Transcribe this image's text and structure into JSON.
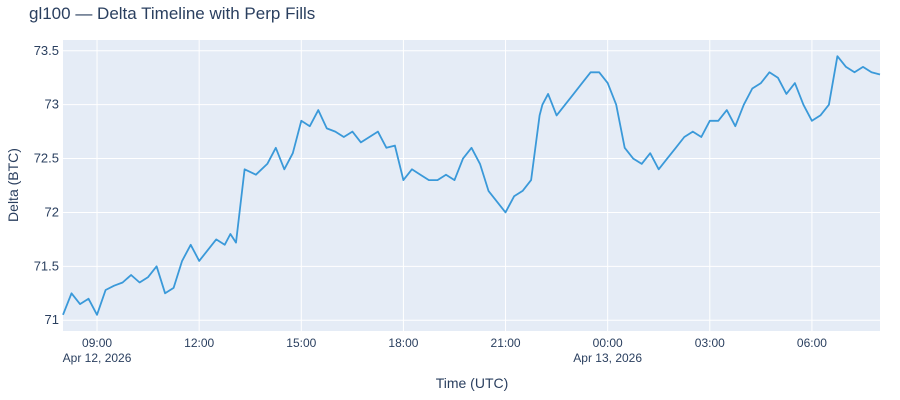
{
  "chart_data": {
    "type": "line",
    "title": "gl100 — Delta Timeline with Perp Fills",
    "xlabel": "Time (UTC)",
    "ylabel": "Delta (BTC)",
    "colors": {
      "line": "#3a99d9",
      "plot_bg": "#e5ecf6",
      "grid": "#ffffff",
      "text": "#2a3f5f"
    },
    "grid": true,
    "legend": "none",
    "xlim": [
      "2026-04-12 08:00",
      "2026-04-13 08:00"
    ],
    "ylim": [
      70.9,
      73.6
    ],
    "x_ticks": [
      {
        "t": "2026-04-12 09:00",
        "label": "09:00",
        "sub": "Apr 12, 2026"
      },
      {
        "t": "2026-04-12 12:00",
        "label": "12:00",
        "sub": ""
      },
      {
        "t": "2026-04-12 15:00",
        "label": "15:00",
        "sub": ""
      },
      {
        "t": "2026-04-12 18:00",
        "label": "18:00",
        "sub": ""
      },
      {
        "t": "2026-04-12 21:00",
        "label": "21:00",
        "sub": ""
      },
      {
        "t": "2026-04-13 00:00",
        "label": "00:00",
        "sub": "Apr 13, 2026"
      },
      {
        "t": "2026-04-13 03:00",
        "label": "03:00",
        "sub": ""
      },
      {
        "t": "2026-04-13 06:00",
        "label": "06:00",
        "sub": ""
      }
    ],
    "y_ticks": [
      {
        "v": 71,
        "label": "71"
      },
      {
        "v": 71.5,
        "label": "71.5"
      },
      {
        "v": 72,
        "label": "72"
      },
      {
        "v": 72.5,
        "label": "72.5"
      },
      {
        "v": 73,
        "label": "73"
      },
      {
        "v": 73.5,
        "label": "73.5"
      }
    ],
    "series": [
      {
        "x": [
          "2026-04-12 08:00",
          "2026-04-12 08:15",
          "2026-04-12 08:30",
          "2026-04-12 08:45",
          "2026-04-12 09:00",
          "2026-04-12 09:15",
          "2026-04-12 09:30",
          "2026-04-12 09:45",
          "2026-04-12 10:00",
          "2026-04-12 10:15",
          "2026-04-12 10:30",
          "2026-04-12 10:45",
          "2026-04-12 11:00",
          "2026-04-12 11:15",
          "2026-04-12 11:30",
          "2026-04-12 11:45",
          "2026-04-12 12:00",
          "2026-04-12 12:15",
          "2026-04-12 12:30",
          "2026-04-12 12:45",
          "2026-04-12 12:55",
          "2026-04-12 13:05",
          "2026-04-12 13:20",
          "2026-04-12 13:40",
          "2026-04-12 14:00",
          "2026-04-12 14:15",
          "2026-04-12 14:30",
          "2026-04-12 14:45",
          "2026-04-12 15:00",
          "2026-04-12 15:15",
          "2026-04-12 15:30",
          "2026-04-12 15:45",
          "2026-04-12 16:00",
          "2026-04-12 16:15",
          "2026-04-12 16:30",
          "2026-04-12 16:45",
          "2026-04-12 17:00",
          "2026-04-12 17:15",
          "2026-04-12 17:30",
          "2026-04-12 17:45",
          "2026-04-12 18:00",
          "2026-04-12 18:15",
          "2026-04-12 18:30",
          "2026-04-12 18:45",
          "2026-04-12 19:00",
          "2026-04-12 19:15",
          "2026-04-12 19:30",
          "2026-04-12 19:45",
          "2026-04-12 20:00",
          "2026-04-12 20:15",
          "2026-04-12 20:30",
          "2026-04-12 20:45",
          "2026-04-12 21:00",
          "2026-04-12 21:15",
          "2026-04-12 21:30",
          "2026-04-12 21:45",
          "2026-04-12 22:00",
          "2026-04-12 22:05",
          "2026-04-12 22:15",
          "2026-04-12 22:30",
          "2026-04-12 22:45",
          "2026-04-12 23:00",
          "2026-04-12 23:15",
          "2026-04-12 23:30",
          "2026-04-12 23:45",
          "2026-04-13 00:00",
          "2026-04-13 00:15",
          "2026-04-13 00:30",
          "2026-04-13 00:45",
          "2026-04-13 01:00",
          "2026-04-13 01:15",
          "2026-04-13 01:30",
          "2026-04-13 01:45",
          "2026-04-13 02:00",
          "2026-04-13 02:15",
          "2026-04-13 02:30",
          "2026-04-13 02:45",
          "2026-04-13 03:00",
          "2026-04-13 03:15",
          "2026-04-13 03:30",
          "2026-04-13 03:45",
          "2026-04-13 04:00",
          "2026-04-13 04:15",
          "2026-04-13 04:30",
          "2026-04-13 04:45",
          "2026-04-13 05:00",
          "2026-04-13 05:15",
          "2026-04-13 05:30",
          "2026-04-13 05:45",
          "2026-04-13 06:00",
          "2026-04-13 06:15",
          "2026-04-13 06:30",
          "2026-04-13 06:45",
          "2026-04-13 07:00",
          "2026-04-13 07:15",
          "2026-04-13 07:30",
          "2026-04-13 07:45",
          "2026-04-13 08:00"
        ],
        "y": [
          71.05,
          71.25,
          71.15,
          71.2,
          71.05,
          71.28,
          71.32,
          71.35,
          71.42,
          71.35,
          71.4,
          71.5,
          71.25,
          71.3,
          71.55,
          71.7,
          71.55,
          71.65,
          71.75,
          71.7,
          71.8,
          71.72,
          72.4,
          72.35,
          72.45,
          72.6,
          72.4,
          72.55,
          72.85,
          72.8,
          72.95,
          72.78,
          72.75,
          72.7,
          72.75,
          72.65,
          72.7,
          72.75,
          72.6,
          72.62,
          72.3,
          72.4,
          72.35,
          72.3,
          72.3,
          72.35,
          72.3,
          72.5,
          72.6,
          72.45,
          72.2,
          72.1,
          72.0,
          72.15,
          72.2,
          72.3,
          72.9,
          73.0,
          73.1,
          72.9,
          73.0,
          73.1,
          73.2,
          73.3,
          73.3,
          73.2,
          73.0,
          72.6,
          72.5,
          72.45,
          72.55,
          72.4,
          72.5,
          72.6,
          72.7,
          72.75,
          72.7,
          72.85,
          72.85,
          72.95,
          72.8,
          73.0,
          73.15,
          73.2,
          73.3,
          73.25,
          73.1,
          73.2,
          73.0,
          72.85,
          72.9,
          73.0,
          73.45,
          73.35,
          73.3,
          73.35,
          73.3,
          73.28
        ]
      }
    ]
  }
}
